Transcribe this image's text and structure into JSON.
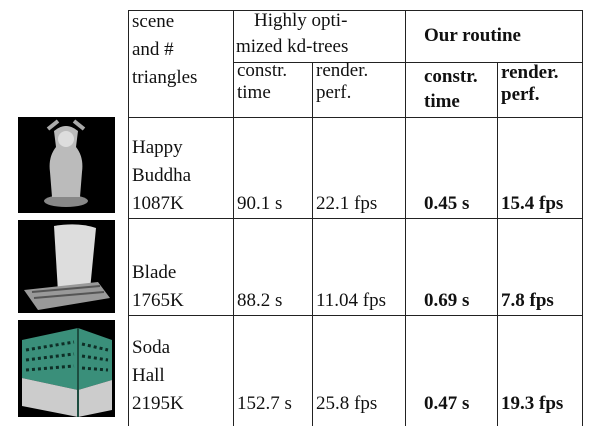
{
  "table": {
    "header": {
      "scene": [
        "scene",
        "and   #",
        "triangles"
      ],
      "kd_trees": [
        "Highly      opti-",
        "mized kd-trees"
      ],
      "our_routine": "Our routine",
      "columns": [
        "constr. time",
        "render. perf.",
        "constr. time",
        "render. perf."
      ]
    },
    "rows": [
      {
        "scene": [
          "Happy",
          "Buddha",
          "1087K"
        ],
        "cells": [
          "90.1 s",
          "22.1 fps",
          "0.45 s",
          "15.4 fps"
        ]
      },
      {
        "scene": [
          "Blade",
          "1765K"
        ],
        "cells": [
          "88.2 s",
          "11.04 fps",
          "0.69 s",
          "7.8 fps"
        ]
      },
      {
        "scene": [
          "Soda",
          "Hall",
          "2195K"
        ],
        "cells": [
          "152.7 s",
          "25.8 fps",
          "0.47 s",
          "19.3 fps"
        ]
      }
    ]
  }
}
